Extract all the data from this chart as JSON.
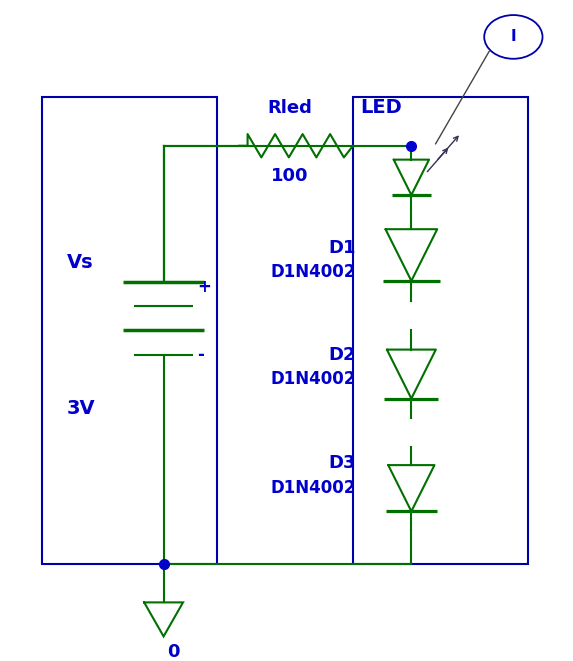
{
  "bg_color": "#ffffff",
  "wire_color": "#007000",
  "text_color": "#0000cc",
  "component_color": "#007000",
  "border_color": "#0000aa",
  "dot_color": "#0000cc",
  "figsize": [
    5.73,
    6.61
  ],
  "dpi": 100,
  "labels": {
    "vs": "Vs",
    "plus": "+",
    "minus": "-",
    "voltage": "3V",
    "rled": "Rled",
    "r_value": "100",
    "led": "LED",
    "d1": "D1",
    "d1_model": "D1N4002",
    "d2": "D2",
    "d2_model": "D1N4002",
    "d3": "D3",
    "d3_model": "D1N4002",
    "ground": "0",
    "probe": "I"
  }
}
